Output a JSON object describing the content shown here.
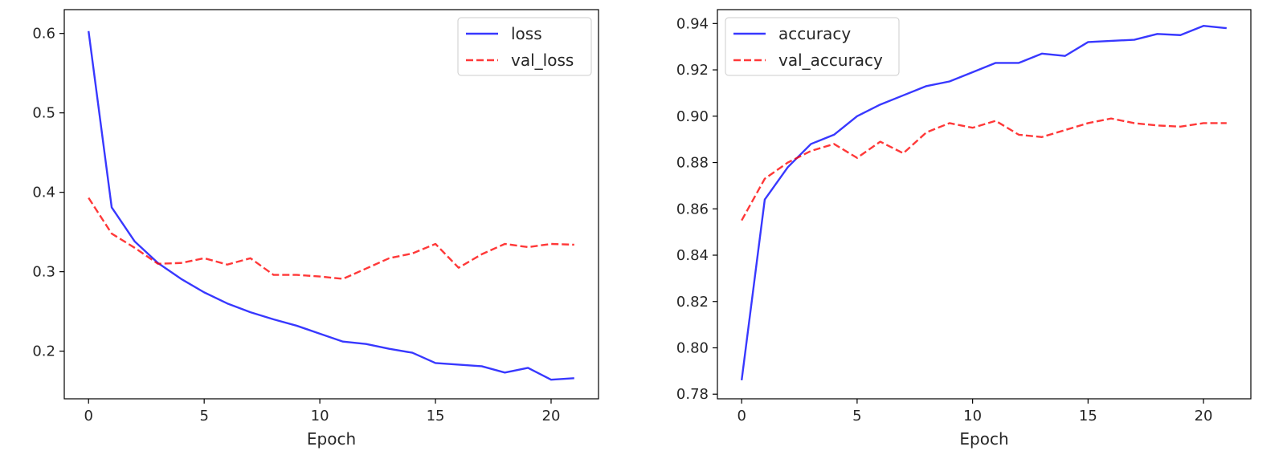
{
  "chart_data": [
    {
      "type": "line",
      "title": "",
      "xlabel": "Epoch",
      "ylabel": "",
      "xlim": [
        -1.05,
        22.05
      ],
      "ylim": [
        0.14,
        0.63
      ],
      "xticks": [
        0,
        5,
        10,
        15,
        20
      ],
      "yticks": [
        0.2,
        0.3,
        0.4,
        0.5,
        0.6
      ],
      "grid": false,
      "legend": "upper right",
      "x": [
        0,
        1,
        2,
        3,
        4,
        5,
        6,
        7,
        8,
        9,
        10,
        11,
        12,
        13,
        14,
        15,
        16,
        17,
        18,
        19,
        20,
        21
      ],
      "series": [
        {
          "name": "loss",
          "color": "#0000ff",
          "style": "solid",
          "values": [
            0.603,
            0.381,
            0.338,
            0.311,
            0.291,
            0.274,
            0.26,
            0.249,
            0.24,
            0.232,
            0.222,
            0.212,
            0.209,
            0.203,
            0.198,
            0.185,
            0.183,
            0.181,
            0.173,
            0.179,
            0.164,
            0.166
          ]
        },
        {
          "name": "val_loss",
          "color": "#ff0000",
          "style": "dashed",
          "values": [
            0.393,
            0.348,
            0.33,
            0.31,
            0.311,
            0.317,
            0.309,
            0.317,
            0.296,
            0.296,
            0.294,
            0.291,
            0.304,
            0.317,
            0.323,
            0.335,
            0.305,
            0.322,
            0.335,
            0.331,
            0.335,
            0.334
          ]
        }
      ]
    },
    {
      "type": "line",
      "title": "",
      "xlabel": "Epoch",
      "ylabel": "",
      "xlim": [
        -1.05,
        22.05
      ],
      "ylim": [
        0.778,
        0.946
      ],
      "xticks": [
        0,
        5,
        10,
        15,
        20
      ],
      "yticks": [
        0.78,
        0.8,
        0.82,
        0.84,
        0.86,
        0.88,
        0.9,
        0.92,
        0.94
      ],
      "grid": false,
      "legend": "upper left",
      "x": [
        0,
        1,
        2,
        3,
        4,
        5,
        6,
        7,
        8,
        9,
        10,
        11,
        12,
        13,
        14,
        15,
        16,
        17,
        18,
        19,
        20,
        21
      ],
      "series": [
        {
          "name": "accuracy",
          "color": "#0000ff",
          "style": "solid",
          "values": [
            0.786,
            0.864,
            0.878,
            0.888,
            0.892,
            0.9,
            0.905,
            0.909,
            0.913,
            0.915,
            0.919,
            0.923,
            0.923,
            0.927,
            0.926,
            0.932,
            0.9325,
            0.933,
            0.9355,
            0.935,
            0.939,
            0.938
          ]
        },
        {
          "name": "val_accuracy",
          "color": "#ff0000",
          "style": "dashed",
          "values": [
            0.855,
            0.873,
            0.88,
            0.885,
            0.888,
            0.882,
            0.889,
            0.884,
            0.893,
            0.897,
            0.895,
            0.898,
            0.892,
            0.891,
            0.894,
            0.897,
            0.899,
            0.897,
            0.896,
            0.8955,
            0.897,
            0.897
          ]
        }
      ]
    }
  ]
}
